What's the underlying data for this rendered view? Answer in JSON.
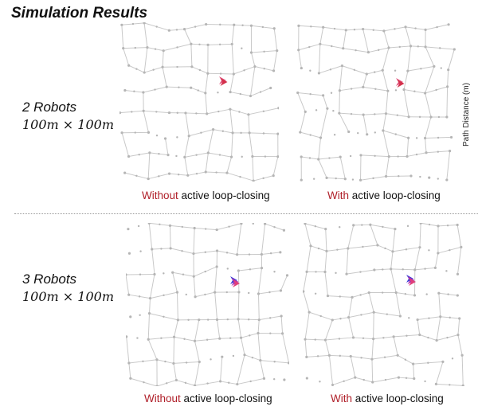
{
  "title": "Simulation Results",
  "rows": [
    {
      "robots_label": "2 Robots",
      "area_label": "100m × 100m",
      "panels": [
        {
          "caption_highlight": "Without",
          "caption_rest": " active loop-closing"
        },
        {
          "caption_highlight": "With",
          "caption_rest": " active loop-closing"
        }
      ]
    },
    {
      "robots_label": "3 Robots",
      "area_label": "100m × 100m",
      "panels": [
        {
          "caption_highlight": "Without",
          "caption_rest": " active loop-closing"
        },
        {
          "caption_highlight": "With",
          "caption_rest": " active loop-closing"
        }
      ]
    }
  ],
  "side_axis_label": "Path Distance (m)",
  "colors": {
    "highlight": "#b0202a",
    "edge": "#c9c9c9",
    "node": "#b5b5b5",
    "robot_2": [
      "#e0507a",
      "#d3304a"
    ],
    "robot_3": [
      "#3b3bd6",
      "#b030b0",
      "#e0407a"
    ]
  }
}
